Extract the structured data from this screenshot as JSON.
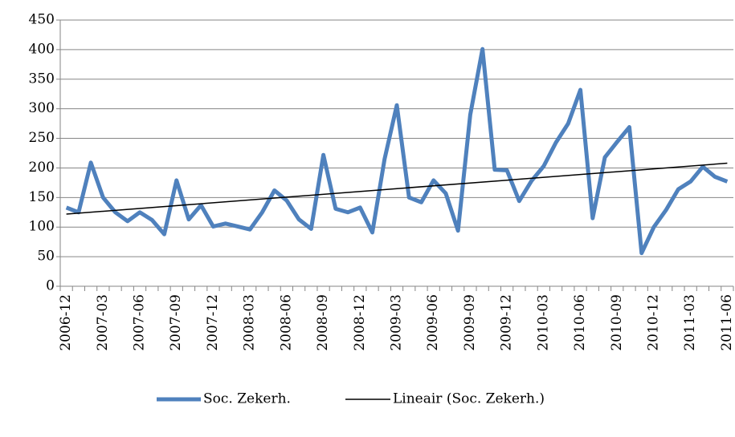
{
  "chart_data": {
    "type": "line",
    "categories": [
      "2006-12",
      null,
      null,
      "2007-03",
      null,
      null,
      "2007-06",
      null,
      null,
      "2007-09",
      null,
      null,
      "2007-12",
      null,
      null,
      "2008-03",
      null,
      null,
      "2008-06",
      null,
      null,
      "2008-09",
      null,
      null,
      "2008-12",
      null,
      null,
      "2009-03",
      null,
      null,
      "2009-06",
      null,
      null,
      "2009-09",
      null,
      null,
      "2009-12",
      null,
      null,
      "2010-03",
      null,
      null,
      "2010-06",
      null,
      null,
      "2010-09",
      null,
      null,
      "2010-12",
      null,
      null,
      "2011-03",
      null,
      null,
      "2011-06"
    ],
    "series": [
      {
        "name": "Soc. Zekerh.",
        "color": "#4f81bd",
        "values": [
          133,
          125,
          209,
          150,
          125,
          110,
          125,
          112,
          88,
          179,
          113,
          137,
          101,
          106,
          101,
          96,
          125,
          162,
          145,
          113,
          97,
          222,
          131,
          125,
          133,
          91,
          215,
          306,
          150,
          142,
          179,
          157,
          94,
          290,
          401,
          197,
          196,
          144,
          178,
          203,
          243,
          275,
          332,
          115,
          218,
          244,
          269,
          56,
          100,
          129,
          164,
          177,
          202,
          185,
          177
        ]
      }
    ],
    "trendline": {
      "name": "Lineair (Soc. Zekerh.)",
      "color": "#000000",
      "values": [
        122,
        208
      ]
    },
    "ylim": [
      0,
      450
    ],
    "yticks": [
      0,
      50,
      100,
      150,
      200,
      250,
      300,
      350,
      400,
      450
    ],
    "grid": true,
    "legend": "bottom"
  }
}
